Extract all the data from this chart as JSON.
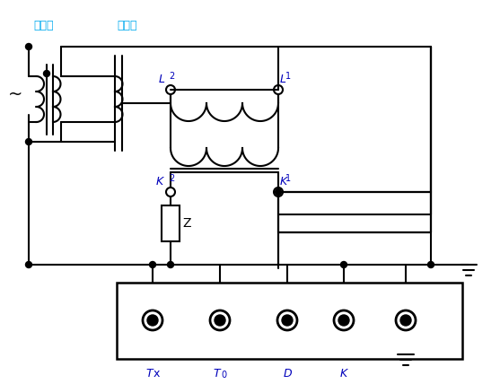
{
  "bg_color": "#ffffff",
  "line_color": "#000000",
  "cn_color": "#00aaee",
  "en_color": "#0000bb",
  "figsize": [
    5.57,
    4.28
  ],
  "dpi": 100,
  "lw": 1.5,
  "label_dianya": "调压器",
  "label_shengliu": "升流器",
  "label_L2": "L2",
  "label_L1": "L1",
  "label_K2": "K2",
  "label_K1": "K1",
  "label_Z": "Z",
  "label_Tx": "Tx",
  "label_T0": "T0",
  "label_D": "D",
  "label_K": "K"
}
